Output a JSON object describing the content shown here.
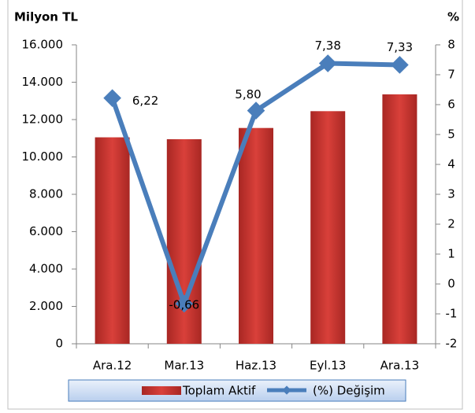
{
  "chart_data": {
    "type": "bar-line",
    "ylabel": "Milyon TL",
    "y2label": "%",
    "categories": [
      "Ara.12",
      "Mar.13",
      "Haz.13",
      "Eyl.13",
      "Ara.13"
    ],
    "series": [
      {
        "name": "Toplam Aktif",
        "type": "bar",
        "color": "#c0302c",
        "values": [
          11050,
          10950,
          11550,
          12450,
          13350
        ]
      },
      {
        "name": "(%) Değişim",
        "type": "line",
        "axis": "y2",
        "color": "#4a7ebb",
        "values": [
          6.22,
          -0.66,
          5.8,
          7.38,
          7.33
        ],
        "value_labels": [
          "6,22",
          "-0,66",
          "5,80",
          "7,38",
          "7,33"
        ]
      }
    ],
    "ylim": [
      0,
      16000
    ],
    "yticks": [
      0,
      {
        "value": 2000,
        "label": "2.000"
      },
      {
        "value": 4000,
        "label": "4.000"
      },
      {
        "value": 6000,
        "label": "6.000"
      },
      {
        "value": 8000,
        "label": "8.000"
      },
      {
        "value": 10000,
        "label": "10.000"
      },
      {
        "value": 12000,
        "label": "12.000"
      },
      {
        "value": 14000,
        "label": "14.000"
      },
      {
        "value": 16000,
        "label": "16.000"
      }
    ],
    "y2lim": [
      -2,
      8
    ],
    "y2ticks": [
      -2,
      -1,
      0,
      1,
      2,
      3,
      4,
      5,
      6,
      7,
      8
    ],
    "grid": false,
    "legend": "bottom"
  }
}
